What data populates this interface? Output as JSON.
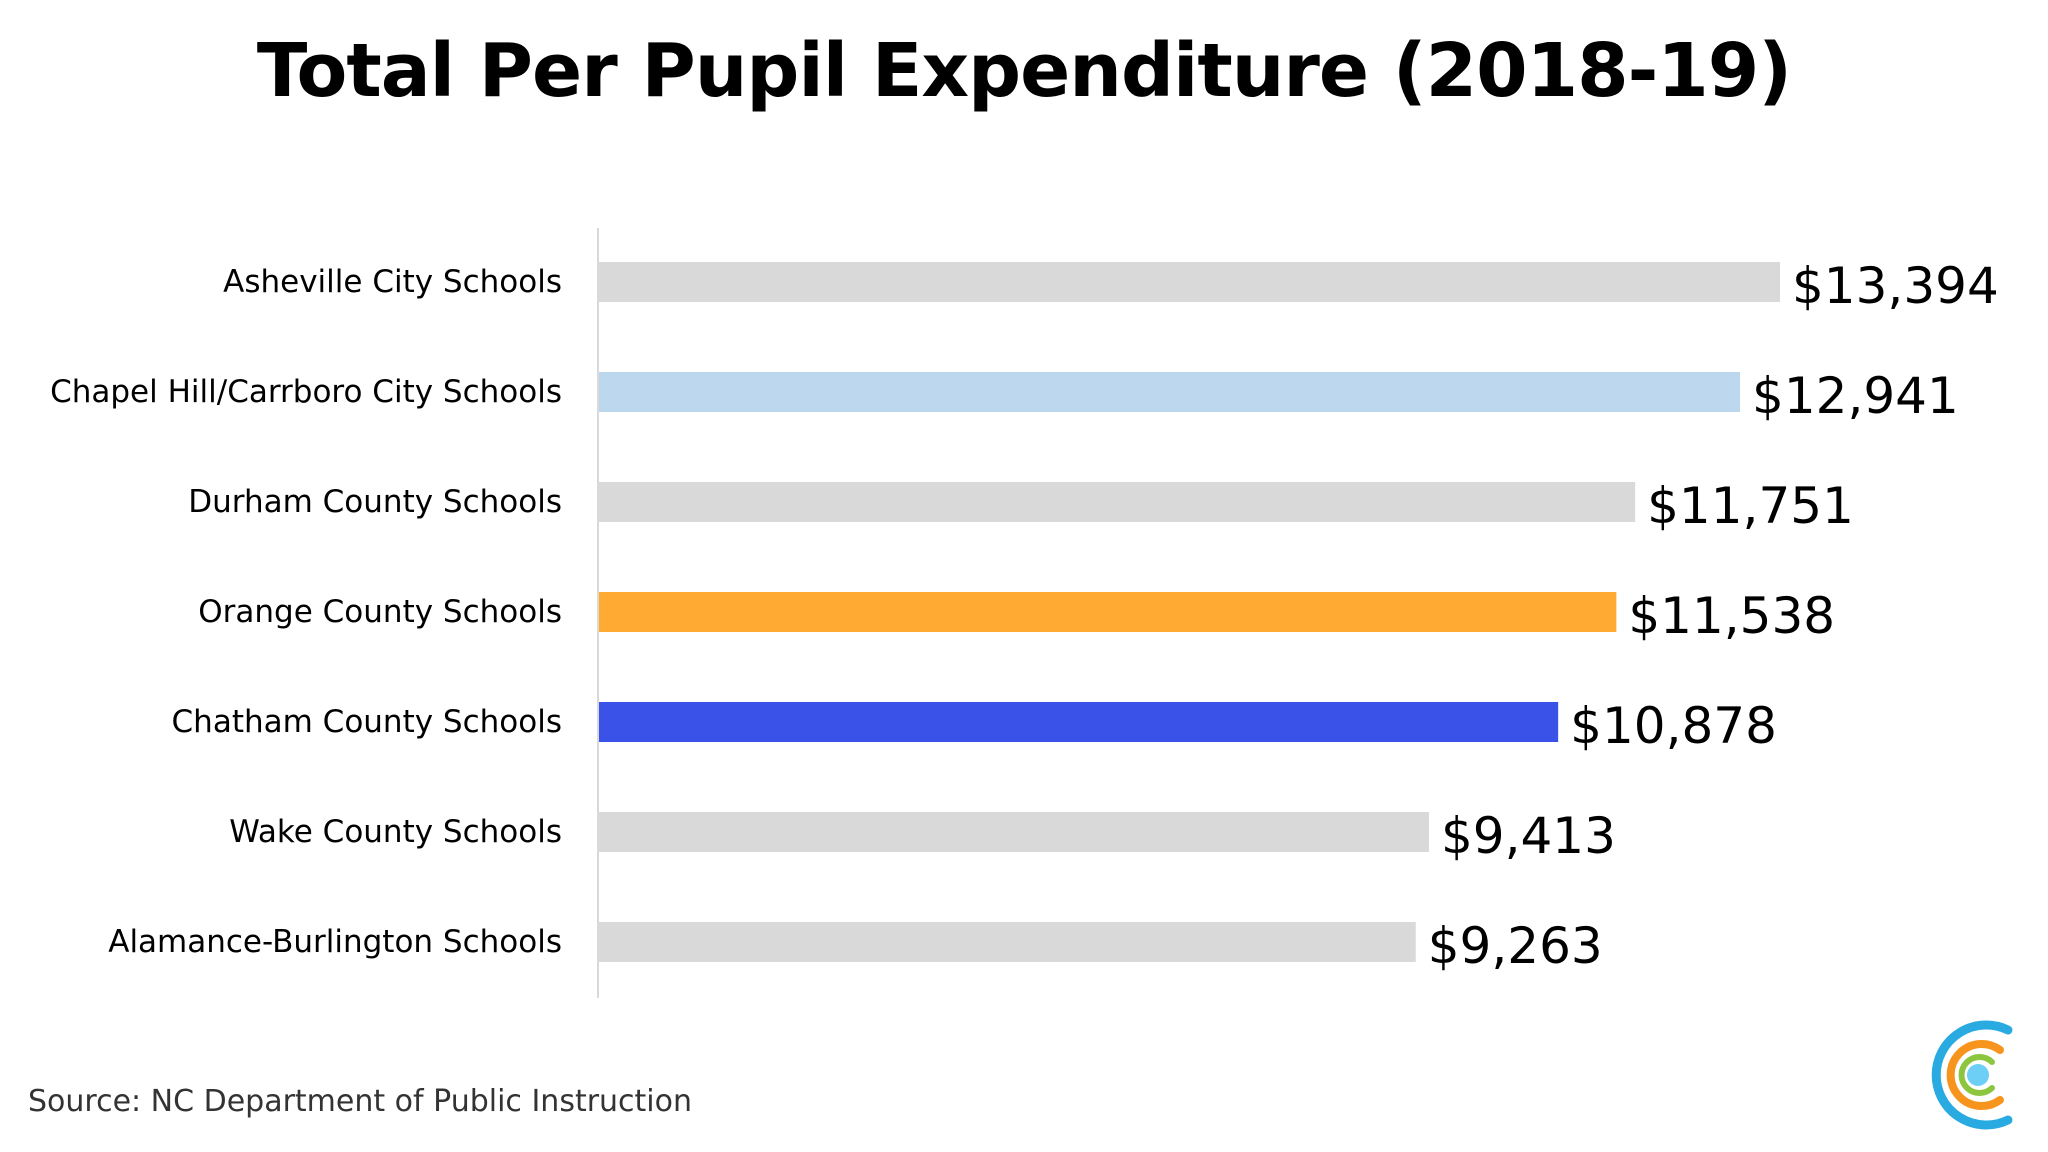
{
  "title": "Total Per Pupil Expenditure (2018-19)",
  "source": "Source: NC Department of Public Instruction",
  "logo_icon": "concentric-circles-logo-icon",
  "colors": {
    "default_bar": "#d9d9d9",
    "chapel_hill": "#bdd7ee",
    "orange_county": "#ffaa33",
    "chatham_county": "#3b52e8",
    "axis_line": "#d9d9d9",
    "logo_outer": "#29abe2",
    "logo_middle": "#f7941d",
    "logo_inner": "#8cc63f",
    "logo_center": "#6dcff6"
  },
  "chart_data": {
    "type": "bar",
    "orientation": "horizontal",
    "title": "Total Per Pupil Expenditure (2018-19)",
    "xlabel": "",
    "ylabel": "",
    "grid": false,
    "xlim": [
      0,
      13394
    ],
    "categories": [
      "Asheville City Schools",
      "Chapel Hill/Carrboro City Schools",
      "Durham County Schools",
      "Orange County Schools",
      "Chatham County Schools",
      "Wake County Schools",
      "Alamance-Burlington Schools"
    ],
    "values": [
      13394,
      12941,
      11751,
      11538,
      10878,
      9413,
      9263
    ],
    "value_labels": [
      "$13,394",
      "$12,941",
      "$11,751",
      "$11,538",
      "$10,878",
      "$9,413",
      "$9,263"
    ],
    "bar_colors": [
      "#d9d9d9",
      "#bdd7ee",
      "#d9d9d9",
      "#ffaa33",
      "#3b52e8",
      "#d9d9d9",
      "#d9d9d9"
    ]
  }
}
